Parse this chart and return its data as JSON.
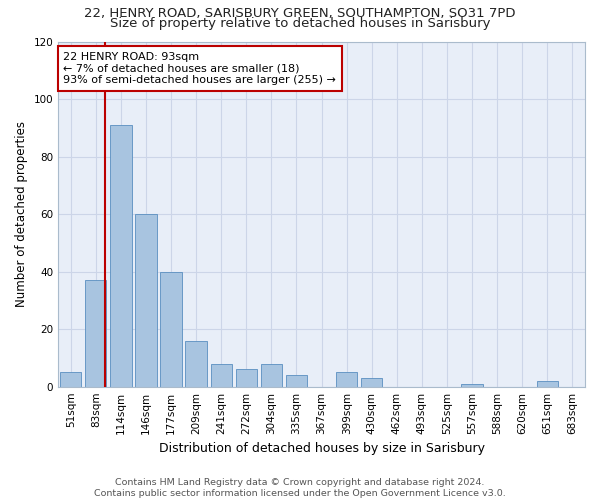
{
  "title_line1": "22, HENRY ROAD, SARISBURY GREEN, SOUTHAMPTON, SO31 7PD",
  "title_line2": "Size of property relative to detached houses in Sarisbury",
  "xlabel": "Distribution of detached houses by size in Sarisbury",
  "ylabel": "Number of detached properties",
  "categories": [
    "51sqm",
    "83sqm",
    "114sqm",
    "146sqm",
    "177sqm",
    "209sqm",
    "241sqm",
    "272sqm",
    "304sqm",
    "335sqm",
    "367sqm",
    "399sqm",
    "430sqm",
    "462sqm",
    "493sqm",
    "525sqm",
    "557sqm",
    "588sqm",
    "620sqm",
    "651sqm",
    "683sqm"
  ],
  "values": [
    5,
    37,
    91,
    60,
    40,
    16,
    8,
    6,
    8,
    4,
    0,
    5,
    3,
    0,
    0,
    0,
    1,
    0,
    0,
    2,
    0
  ],
  "bar_color": "#a8c4e0",
  "bar_edge_color": "#5a8fc0",
  "vline_x": 1.35,
  "annotation_text_line1": "22 HENRY ROAD: 93sqm",
  "annotation_text_line2": "← 7% of detached houses are smaller (18)",
  "annotation_text_line3": "93% of semi-detached houses are larger (255) →",
  "annotation_box_color": "#ffffff",
  "annotation_box_edge_color": "#bb0000",
  "vline_color": "#bb0000",
  "ylim": [
    0,
    120
  ],
  "yticks": [
    0,
    20,
    40,
    60,
    80,
    100,
    120
  ],
  "grid_color": "#ccd5e8",
  "plot_bg_color": "#e8eef8",
  "fig_bg_color": "#ffffff",
  "footer_line1": "Contains HM Land Registry data © Crown copyright and database right 2024.",
  "footer_line2": "Contains public sector information licensed under the Open Government Licence v3.0.",
  "title1_fontsize": 9.5,
  "title2_fontsize": 9.5,
  "xlabel_fontsize": 9,
  "ylabel_fontsize": 8.5,
  "tick_fontsize": 7.5,
  "annotation_fontsize": 8,
  "footer_fontsize": 6.8
}
